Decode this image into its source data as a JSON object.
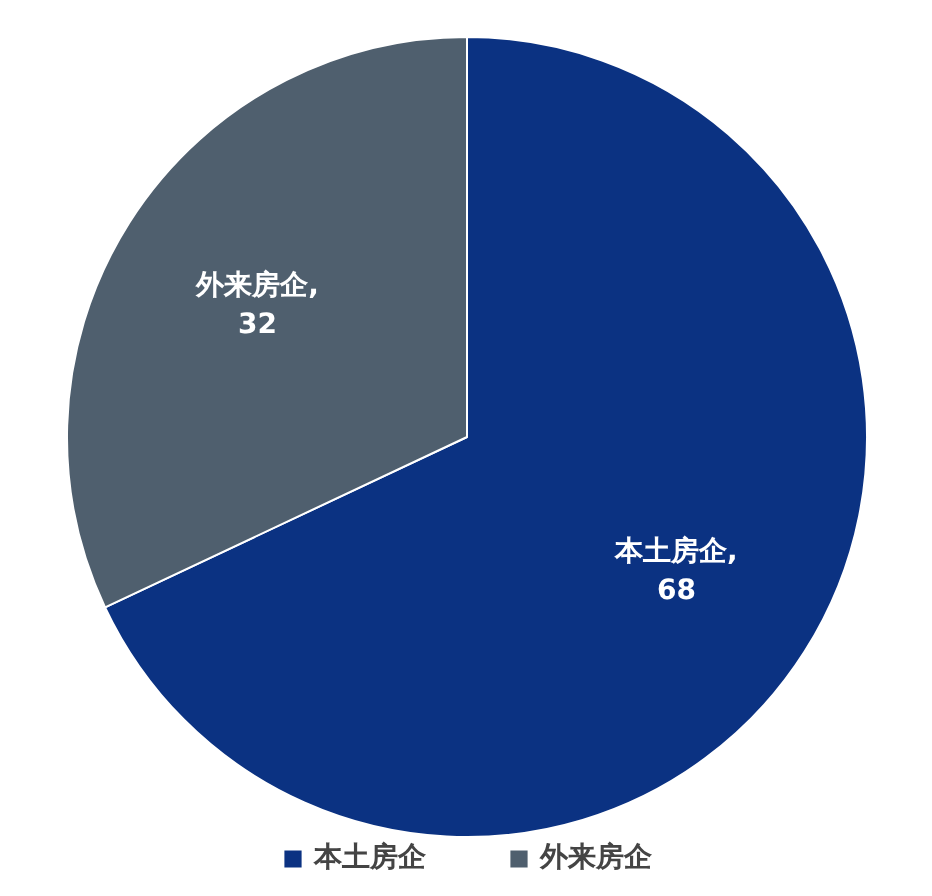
{
  "chart_data": {
    "type": "pie",
    "categories": [
      "本土房企",
      "外来房企"
    ],
    "values": [
      68,
      32
    ],
    "colors": [
      "#0b3282",
      "#4f5f6e"
    ],
    "value_labels": [
      "本土房企,\n68",
      "外来房企,\n32"
    ],
    "legend": "bottom"
  }
}
